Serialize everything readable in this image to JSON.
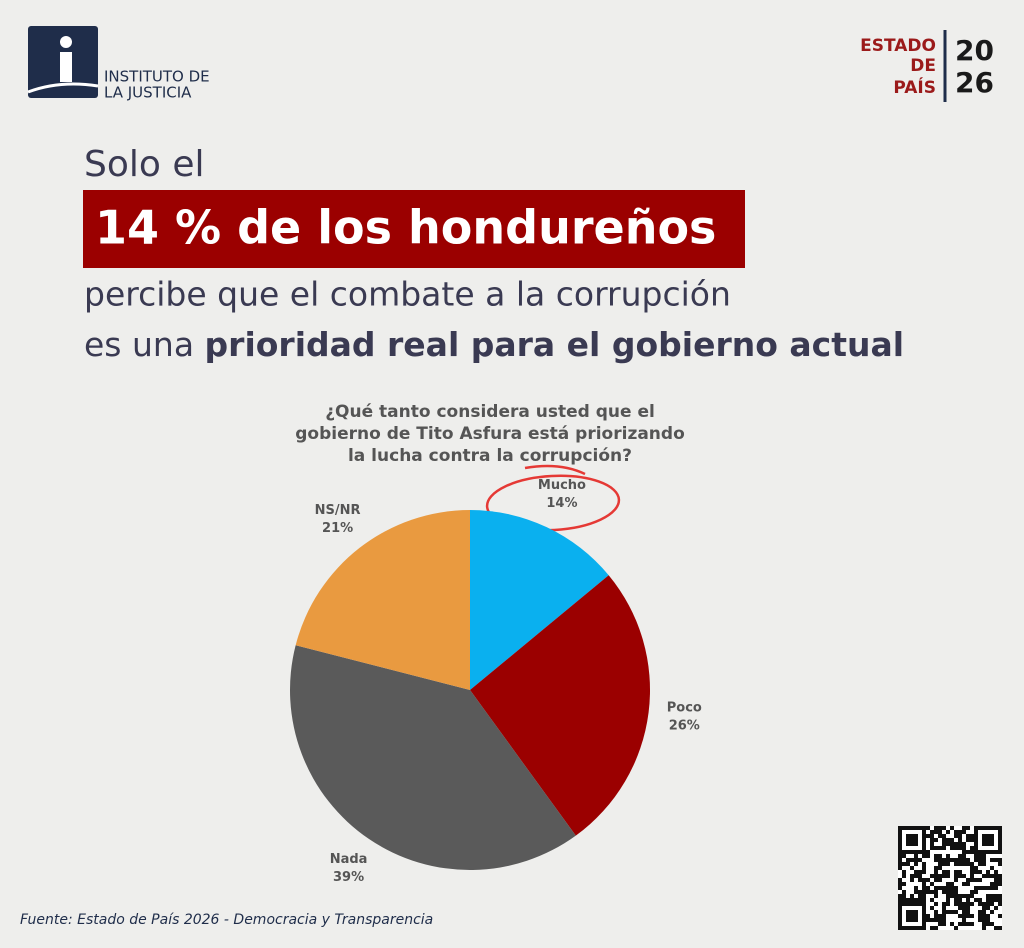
{
  "logo": {
    "line1": "INSTITUTO DE",
    "line2": "LA JUSTICIA"
  },
  "brand": {
    "word1": "ESTADO",
    "word2": "DE",
    "word3": "PAÍS",
    "year1": "20",
    "year2": "26"
  },
  "headline": {
    "line1": "Solo el",
    "highlight": "14 % de los hondureños",
    "line3": "percibe que el combate a la corrupción",
    "line4_regular": "es una",
    "line4_bold": "prioridad real para el gobierno actual"
  },
  "chart_data": {
    "type": "pie",
    "title_lines": [
      "¿Qué tanto considera usted que el",
      "gobierno de Tito Asfura está priorizando",
      "la lucha contra la corrupción?"
    ],
    "categories": [
      "Mucho",
      "Poco",
      "Nada",
      "NS/NR"
    ],
    "values": [
      14,
      26,
      39,
      21
    ],
    "value_labels": [
      "14%",
      "26%",
      "39%",
      "21%"
    ],
    "colors": [
      "#0ab0ef",
      "#9b0000",
      "#5a5a5a",
      "#e99a40"
    ]
  },
  "source": "Fuente: Estado de País 2026 - Democracia y Transparencia"
}
